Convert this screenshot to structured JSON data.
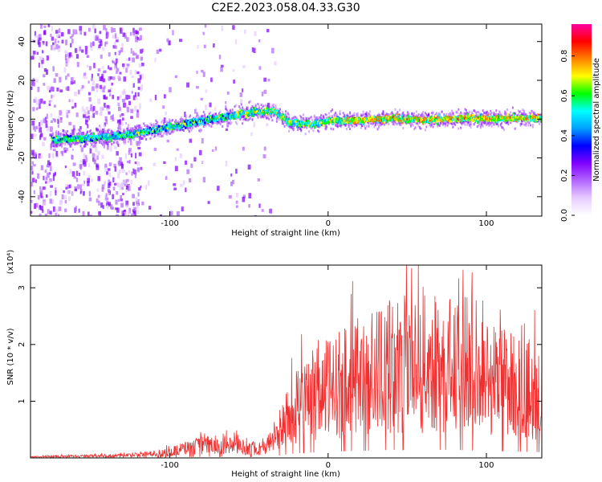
{
  "title": "C2E2.2023.058.04.33.G30",
  "chart_data": [
    {
      "type": "heatmap",
      "xlabel": "Height of straight line (km)",
      "ylabel": "Frequency (Hz)",
      "xlim": [
        -188,
        135
      ],
      "ylim": [
        -50,
        49
      ],
      "xticks": [
        -100,
        0,
        100
      ],
      "yticks": [
        -40,
        -20,
        0,
        20,
        40
      ],
      "colorbar": {
        "label": "Normalized spectral amplitude",
        "ticks": [
          "0.0",
          "0.2",
          "0.4",
          "0.6",
          "0.8"
        ],
        "range": [
          0,
          0.96
        ],
        "colors": [
          "#ffffff",
          "#e6ccff",
          "#b366ff",
          "#7f00ff",
          "#0000ff",
          "#00a0ff",
          "#00ffff",
          "#00ff00",
          "#ffff00",
          "#ff8000",
          "#ff0000",
          "#ff00a0"
        ]
      },
      "ridge_frequency_points": [
        {
          "x": -170,
          "y": -10
        },
        {
          "x": -150,
          "y": -9
        },
        {
          "x": -130,
          "y": -8
        },
        {
          "x": -110,
          "y": -5
        },
        {
          "x": -90,
          "y": -2
        },
        {
          "x": -70,
          "y": 1
        },
        {
          "x": -50,
          "y": 4
        },
        {
          "x": -35,
          "y": 5
        },
        {
          "x": -25,
          "y": -1
        },
        {
          "x": -10,
          "y": -2
        },
        {
          "x": 0,
          "y": 0
        },
        {
          "x": 20,
          "y": 0
        },
        {
          "x": 40,
          "y": 1
        },
        {
          "x": 60,
          "y": 0
        },
        {
          "x": 80,
          "y": 1
        },
        {
          "x": 100,
          "y": 1
        },
        {
          "x": 120,
          "y": 1
        },
        {
          "x": 135,
          "y": 1
        }
      ]
    },
    {
      "type": "line",
      "xlabel": "Height of straight line (km)",
      "ylabel": "SNR (10 * v/v)",
      "yunit": "(x10⁴)",
      "xlim": [
        -188,
        135
      ],
      "ylim": [
        0,
        3.4
      ],
      "xticks": [
        -100,
        0,
        100
      ],
      "yticks": [
        1,
        2,
        3
      ],
      "color": "#f03030",
      "envelope": [
        {
          "x": -188,
          "y": 0.03
        },
        {
          "x": -150,
          "y": 0.06
        },
        {
          "x": -120,
          "y": 0.09
        },
        {
          "x": -100,
          "y": 0.18
        },
        {
          "x": -90,
          "y": 0.3
        },
        {
          "x": -80,
          "y": 0.38
        },
        {
          "x": -70,
          "y": 0.4
        },
        {
          "x": -60,
          "y": 0.38
        },
        {
          "x": -50,
          "y": 0.3
        },
        {
          "x": -40,
          "y": 0.3
        },
        {
          "x": -30,
          "y": 0.9
        },
        {
          "x": -20,
          "y": 1.6
        },
        {
          "x": -10,
          "y": 1.9
        },
        {
          "x": 0,
          "y": 2.1
        },
        {
          "x": 20,
          "y": 2.5
        },
        {
          "x": 40,
          "y": 2.8
        },
        {
          "x": 60,
          "y": 2.9
        },
        {
          "x": 80,
          "y": 2.8
        },
        {
          "x": 100,
          "y": 2.5
        },
        {
          "x": 120,
          "y": 2.2
        },
        {
          "x": 135,
          "y": 2.0
        }
      ]
    }
  ]
}
